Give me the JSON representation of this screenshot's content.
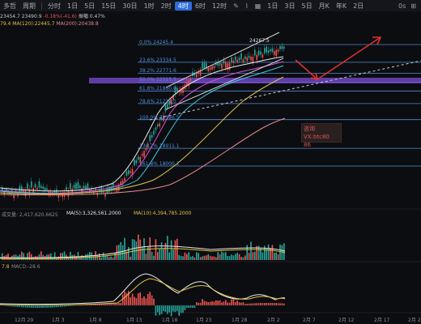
{
  "toolbar": {
    "items": [
      "多哲",
      "周期",
      "分时",
      "1日",
      "5日",
      "15日",
      "30日",
      "1时",
      "2时",
      "4时",
      "6时",
      "12时",
      "1日",
      "3日",
      "5日",
      "月K",
      "年K",
      "2日"
    ],
    "active_index": 9,
    "right_labels": [
      "0s",
      "⊞"
    ]
  },
  "legend": {
    "row1": [
      {
        "text": "23454.7",
        "color": "#c8c9cc"
      },
      {
        "text": "23490.9",
        "color": "#c8c9cc"
      },
      {
        "text": "-0.18%(-41.6)",
        "color": "#e05555"
      },
      {
        "text": "振幅 0.47%",
        "color": "#c8c9cc"
      }
    ],
    "row2": [
      {
        "text": "79.4",
        "color": "#e0c24a"
      },
      {
        "text": "MA(120):22445.7",
        "color": "#e0c24a"
      },
      {
        "text": "MA(200):20438.8",
        "color": "#e58b8b"
      }
    ]
  },
  "fib_levels": [
    {
      "label": "0.0% 24245.4",
      "price": 24245.4
    },
    {
      "label": "23.6% 23334.5",
      "price": 23334.5
    },
    {
      "label": "38.2% 22771.6",
      "price": 22771.6
    },
    {
      "label": "50.0% 22315.5",
      "price": 22315.5
    },
    {
      "label": "61.8% 21860.0",
      "price": 21860.0
    },
    {
      "label": "78.6% 21211.5",
      "price": 21211.5
    },
    {
      "label": "100.0% 20386.5",
      "price": 20386.5
    },
    {
      "label": "138.2% 18911.1",
      "price": 18911.1
    },
    {
      "label": "161.8% 18000.1",
      "price": 18000.1
    }
  ],
  "high_tag": "24267.5",
  "promo": {
    "line1": "咨询VX:btc80",
    "line2": "86"
  },
  "volume": {
    "title": "成交量: 2,417,620.6625",
    "ma5": "MA(5):3,326,561.2000",
    "ma10": "MA(10):4,394,785.2000"
  },
  "macd": {
    "title_a": "7.8",
    "title_b": "MACD:-28.6"
  },
  "xaxis": [
    "12月 29",
    "1月 3",
    "1月 8",
    "1月 13",
    "1月 18",
    "1月 23",
    "1月 28",
    "2月 2",
    "2月 7",
    "2月 12",
    "2月 17",
    "2月 22"
  ],
  "colors": {
    "up": "#26a69a",
    "down": "#ef5350",
    "fib": "#4f8dd6",
    "band": "#7a4fd8",
    "arrow": "#e0302f"
  }
}
